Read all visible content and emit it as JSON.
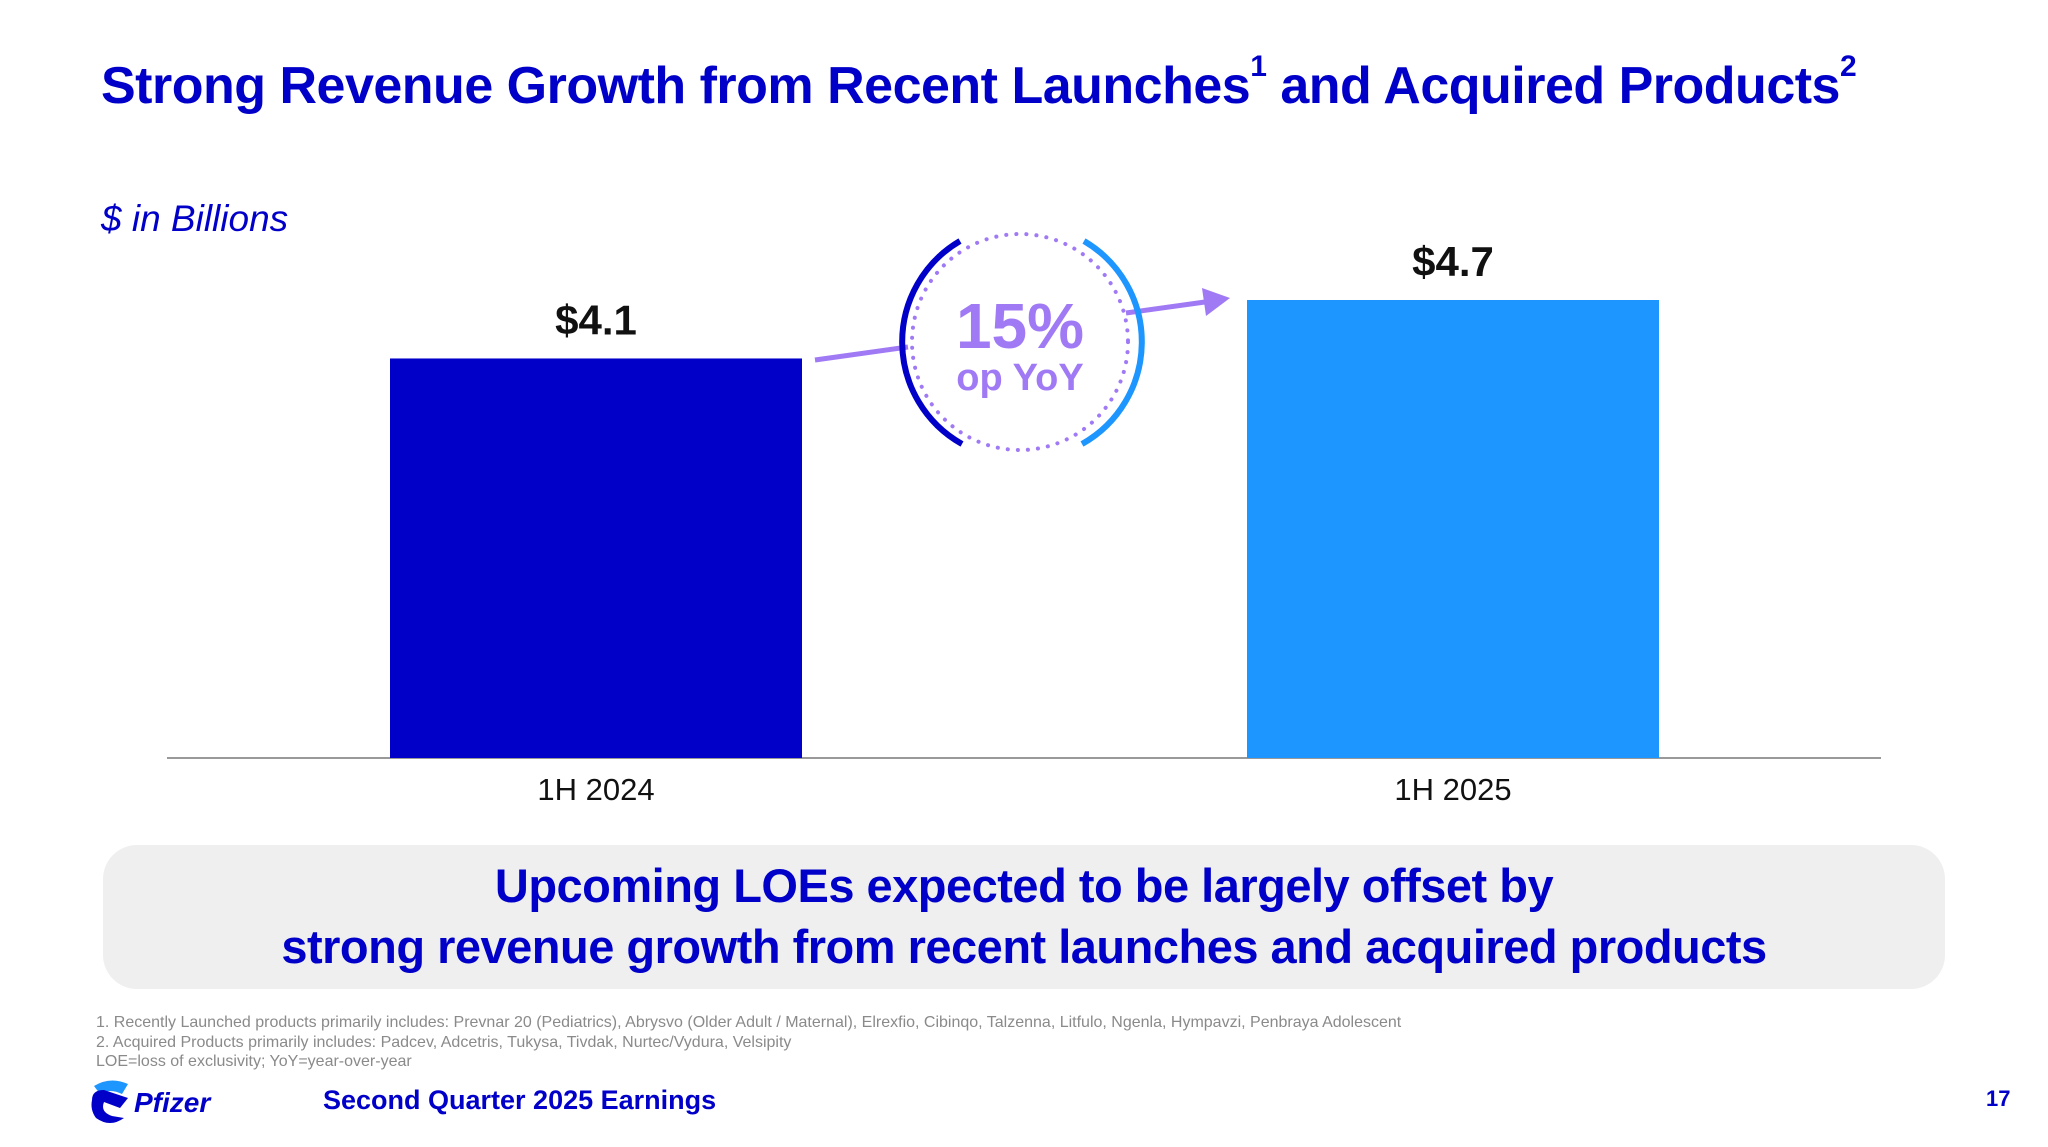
{
  "title": {
    "text_a": "Strong Revenue Growth from Recent Launches",
    "sup_a": "1",
    "text_b": " and Acquired Products",
    "sup_b": "2"
  },
  "units": "$ in Billions",
  "colors": {
    "primary": "#0000C9",
    "secondary": "#1E96FF",
    "accent": "#A07AF5"
  },
  "chart_data": {
    "type": "bar",
    "title": "Strong Revenue Growth from Recent Launches and Acquired Products",
    "ylabel": "$ in Billions",
    "xlabel": "",
    "categories": [
      "1H 2024",
      "1H 2025"
    ],
    "values": [
      4.1,
      4.7
    ],
    "value_labels": [
      "$4.1",
      "$4.7"
    ],
    "bar_colors": [
      "#0000C9",
      "#1E96FF"
    ],
    "ylim": [
      0,
      5.45
    ],
    "grid": false,
    "annotation": {
      "value": "15%",
      "label": "op YoY"
    }
  },
  "callout": {
    "line1": "Upcoming LOEs expected to be largely offset by",
    "line2": "strong revenue growth from recent launches and acquired products"
  },
  "footnotes": [
    "1. Recently Launched products primarily includes: Prevnar 20 (Pediatrics), Abrysvo (Older Adult / Maternal), Elrexfio, Cibinqo, Talzenna, Litfulo, Ngenla, Hympavzi, Penbraya Adolescent",
    "2. Acquired Products primarily includes: Padcev, Adcetris, Tukysa, Tivdak, Nurtec/Vydura, Velsipity",
    "LOE=loss of exclusivity; YoY=year-over-year"
  ],
  "footer": {
    "logo_text": "Pfizer",
    "title": "Second Quarter 2025 Earnings",
    "page": "17"
  }
}
